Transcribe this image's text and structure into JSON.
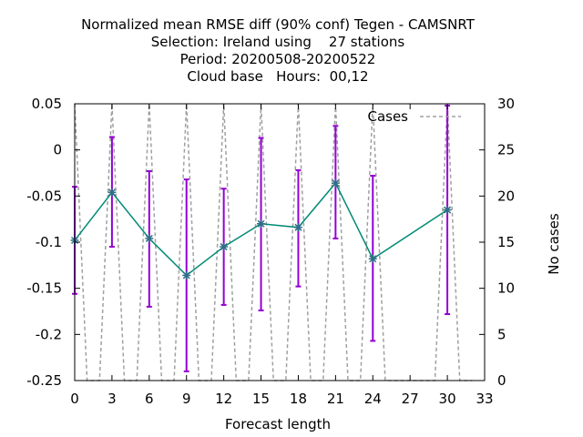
{
  "chart_data": {
    "type": "line",
    "title_lines": [
      "Normalized mean RMSE diff (90% conf) Tegen - CAMSNRT",
      "Selection: Ireland using    27 stations",
      "Period: 20200508-20200522",
      "Cloud base   Hours:  00,12"
    ],
    "xlabel": "Forecast length",
    "ylabel": "",
    "y2label": "No cases",
    "xlim": [
      0,
      33
    ],
    "ylim": [
      -0.25,
      0.05
    ],
    "y2lim": [
      0,
      30
    ],
    "xticks": [
      0,
      3,
      6,
      9,
      12,
      15,
      18,
      21,
      24,
      27,
      30,
      33
    ],
    "yticks": [
      0.05,
      0,
      -0.05,
      -0.1,
      -0.15,
      -0.2,
      -0.25
    ],
    "yticklabels": [
      "0.05",
      "0",
      "-0.05",
      "-0.1",
      "-0.15",
      "-0.2",
      "-0.25"
    ],
    "y2ticks": [
      0,
      5,
      10,
      15,
      20,
      25,
      30
    ],
    "grid": false,
    "legend_position": "top-right",
    "series": [
      {
        "name": "",
        "color": "#008b74",
        "x": [
          0,
          3,
          6,
          9,
          12,
          15,
          18,
          21,
          24,
          30
        ],
        "y": [
          -0.098,
          -0.046,
          -0.096,
          -0.136,
          -0.105,
          -0.08,
          -0.084,
          -0.036,
          -0.118,
          -0.065
        ],
        "err_low": [
          -0.156,
          -0.105,
          -0.17,
          -0.24,
          -0.168,
          -0.174,
          -0.148,
          -0.096,
          -0.207,
          -0.178
        ],
        "err_high": [
          -0.04,
          0.014,
          -0.023,
          -0.032,
          -0.042,
          0.013,
          -0.022,
          0.026,
          -0.028,
          0.048
        ],
        "error_color": "#9400d3"
      },
      {
        "name": "Cases",
        "axis": "y2",
        "style": "dashed",
        "color": "#a0a0a0",
        "x": [
          0,
          1,
          2,
          3,
          4,
          5,
          6,
          7,
          8,
          9,
          10,
          11,
          12,
          13,
          14,
          15,
          16,
          17,
          18,
          19,
          20,
          21,
          22,
          23,
          24,
          25,
          26,
          27,
          28,
          29,
          30,
          31,
          32
        ],
        "y": [
          30,
          0,
          0,
          30,
          0,
          0,
          30,
          0,
          0,
          30,
          0,
          0,
          30,
          0,
          0,
          30,
          0,
          0,
          30,
          0,
          0,
          30,
          0,
          0,
          30,
          0,
          0,
          0,
          0,
          0,
          30,
          0,
          0
        ]
      }
    ]
  }
}
